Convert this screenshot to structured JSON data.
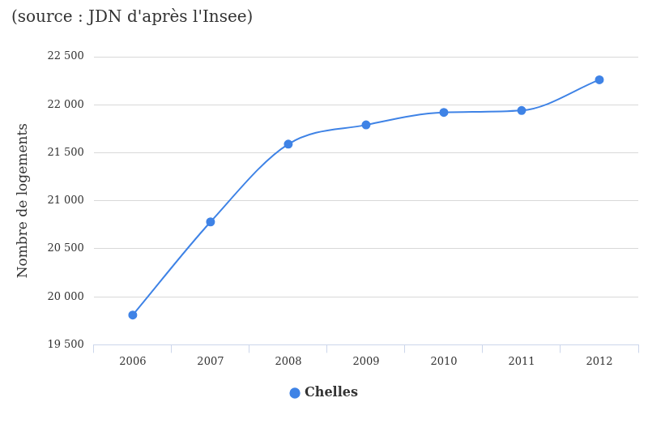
{
  "chart_data": {
    "type": "line",
    "title": "(source : JDN d'après l'Insee)",
    "y_label": "Nombre de logements",
    "categories": [
      "2006",
      "2007",
      "2008",
      "2009",
      "2010",
      "2011",
      "2012"
    ],
    "series": [
      {
        "name": "Chelles",
        "color": "#3f83e6",
        "marker": "circle",
        "line_style": "solid",
        "values": [
          19810,
          20780,
          21590,
          21790,
          21920,
          21940,
          22260
        ]
      }
    ],
    "ylim": [
      19500,
      22500
    ],
    "yticks": [
      {
        "value": 19500,
        "label": "19 500"
      },
      {
        "value": 20000,
        "label": "20 000"
      },
      {
        "value": 20500,
        "label": "20 500"
      },
      {
        "value": 21000,
        "label": "21 000"
      },
      {
        "value": 21500,
        "label": "21 500"
      },
      {
        "value": 22000,
        "label": "22 000"
      },
      {
        "value": 22500,
        "label": "22 500"
      }
    ],
    "grid": true,
    "legend": "bottom"
  }
}
